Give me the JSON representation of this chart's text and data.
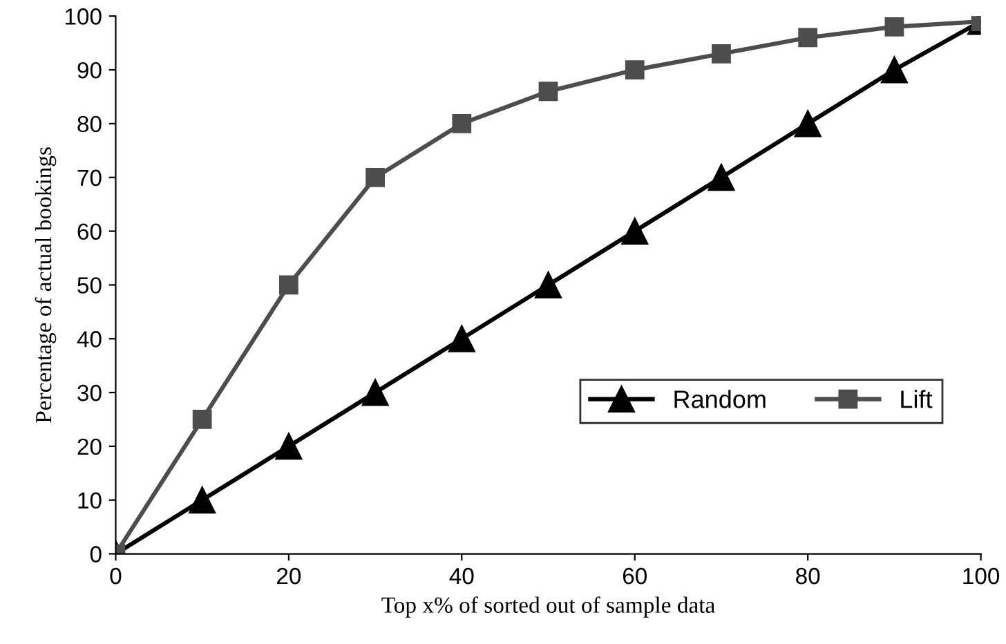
{
  "chart_data": {
    "type": "line",
    "xlabel": "Top x% of sorted out of sample data",
    "ylabel": "Percentage of actual bookings",
    "x": [
      0,
      10,
      20,
      30,
      40,
      50,
      60,
      70,
      80,
      90,
      100
    ],
    "series": [
      {
        "name": "Random",
        "color": "#000000",
        "marker": "triangle",
        "values": [
          0,
          10,
          20,
          30,
          40,
          50,
          60,
          70,
          80,
          90,
          99
        ]
      },
      {
        "name": "Lift",
        "color": "#4d4d4d",
        "marker": "square",
        "values": [
          0,
          25,
          50,
          70,
          80,
          86,
          90,
          93,
          96,
          98,
          99
        ]
      }
    ],
    "xlim": [
      0,
      100
    ],
    "xticks": [
      0,
      20,
      40,
      60,
      80,
      100
    ],
    "ylim": [
      0,
      100
    ],
    "yticks": [
      0,
      10,
      20,
      30,
      40,
      50,
      60,
      70,
      80,
      90,
      100
    ],
    "grid": false,
    "legend": "lower right",
    "line_style": "solid"
  }
}
